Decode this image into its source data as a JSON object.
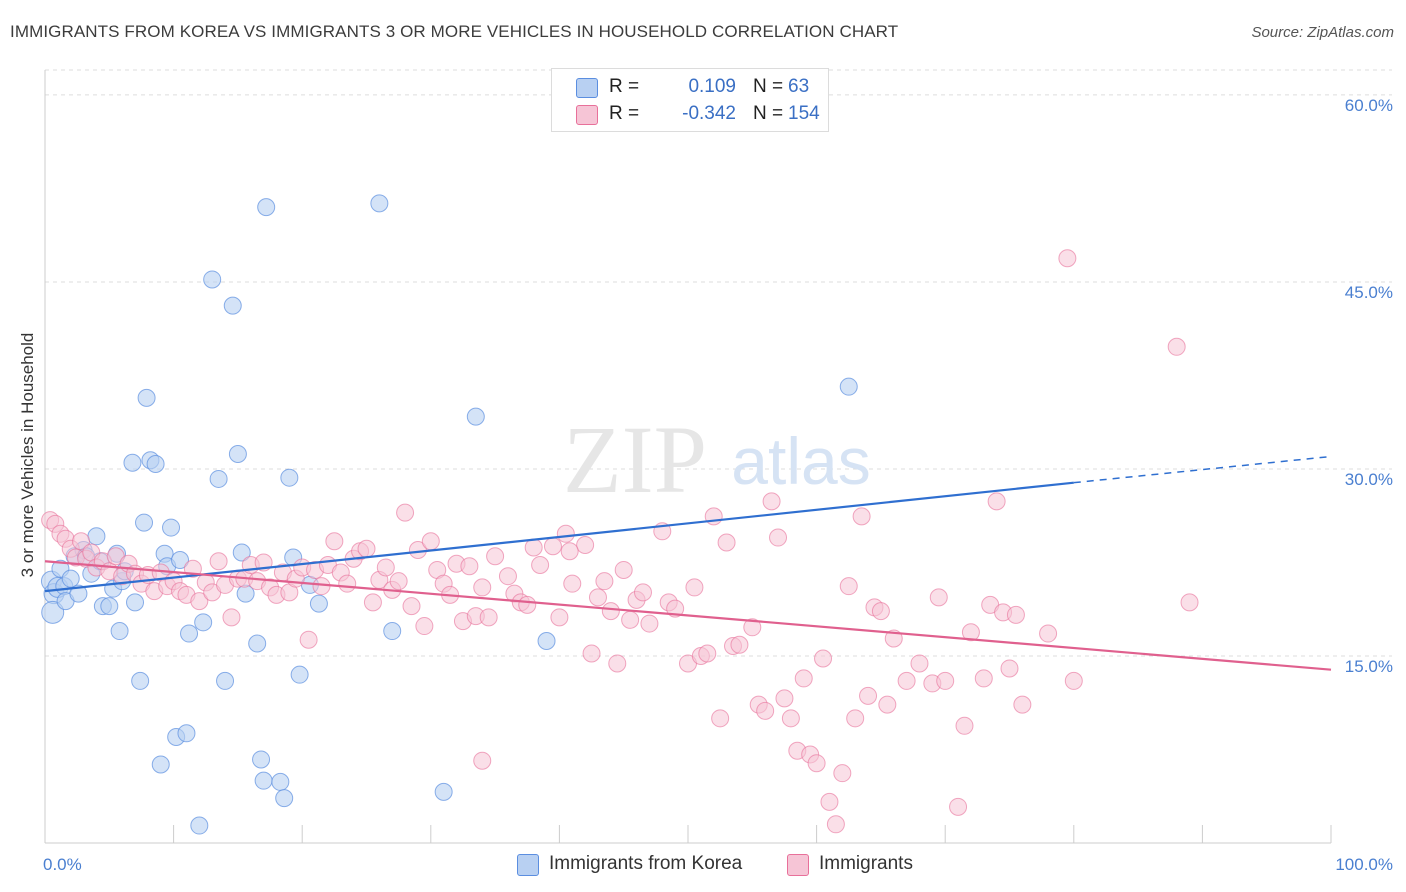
{
  "header": {
    "title": "IMMIGRANTS FROM KOREA VS IMMIGRANTS 3 OR MORE VEHICLES IN HOUSEHOLD CORRELATION CHART",
    "source": "Source: ZipAtlas.com"
  },
  "watermark": {
    "zip": "ZIP",
    "atlas": "atlas"
  },
  "legend_top": {
    "rows": [
      {
        "r_label": "R =",
        "r_value": "0.109",
        "n_label": "N =",
        "n_value": "63"
      },
      {
        "r_label": "R =",
        "r_value": "-0.342",
        "n_label": "N =",
        "n_value": "154"
      }
    ]
  },
  "chart_data": {
    "type": "scatter",
    "title": "IMMIGRANTS FROM KOREA VS IMMIGRANTS 3 OR MORE VEHICLES IN HOUSEHOLD CORRELATION CHART",
    "xlabel": "",
    "ylabel": "3 or more Vehicles in Household",
    "xlim": [
      0,
      100
    ],
    "ylim": [
      0,
      62
    ],
    "x_tick_labels": [
      "0.0%",
      "100.0%"
    ],
    "y_ticks": [
      15,
      30,
      45,
      60
    ],
    "y_tick_labels": [
      "15.0%",
      "30.0%",
      "45.0%",
      "60.0%"
    ],
    "grid": true,
    "legend_position": "bottom",
    "colors": {
      "korea": "#5b8ee0",
      "korea_fill": "#b8d0f2",
      "immigrants": "#e8709a",
      "immigrants_fill": "#f6c5d6"
    },
    "series": [
      {
        "name": "Immigrants from Korea",
        "color": "#5b8ee0",
        "trend": {
          "x0": 0,
          "y0": 20.2,
          "x1": 80,
          "y1": 28.9,
          "dashed_to_x": 100,
          "dashed_to_y": 31.0
        },
        "points": [
          [
            0.5,
            21
          ],
          [
            0.7,
            20
          ],
          [
            0.6,
            18.5
          ],
          [
            1,
            20.5
          ],
          [
            1.2,
            22
          ],
          [
            1.5,
            20.6
          ],
          [
            1.6,
            19.4
          ],
          [
            2,
            21.2
          ],
          [
            2.3,
            23
          ],
          [
            2.6,
            20
          ],
          [
            3,
            23.5
          ],
          [
            3.2,
            23
          ],
          [
            3.6,
            21.6
          ],
          [
            4,
            24.6
          ],
          [
            4.3,
            22.6
          ],
          [
            4.5,
            19
          ],
          [
            5,
            19
          ],
          [
            5.3,
            20.4
          ],
          [
            5.6,
            23.2
          ],
          [
            5.8,
            17
          ],
          [
            6,
            21
          ],
          [
            6.2,
            21.8
          ],
          [
            7,
            19.3
          ],
          [
            7.4,
            13
          ],
          [
            7.7,
            25.7
          ],
          [
            7.9,
            35.7
          ],
          [
            8.2,
            30.7
          ],
          [
            8.6,
            30.4
          ],
          [
            6.8,
            30.5
          ],
          [
            9,
            6.3
          ],
          [
            9.3,
            23.2
          ],
          [
            9.5,
            22.2
          ],
          [
            9.8,
            25.3
          ],
          [
            10.2,
            8.5
          ],
          [
            10.5,
            22.7
          ],
          [
            11,
            8.8
          ],
          [
            11.2,
            16.8
          ],
          [
            12,
            1.4
          ],
          [
            12.3,
            17.7
          ],
          [
            13,
            45.2
          ],
          [
            13.5,
            29.2
          ],
          [
            14,
            13
          ],
          [
            14.6,
            43.1
          ],
          [
            15,
            31.2
          ],
          [
            15.3,
            23.3
          ],
          [
            15.6,
            20
          ],
          [
            16.5,
            16
          ],
          [
            16.8,
            6.7
          ],
          [
            17,
            5
          ],
          [
            17.2,
            51
          ],
          [
            18.3,
            4.9
          ],
          [
            18.6,
            3.6
          ],
          [
            19,
            29.3
          ],
          [
            19.3,
            22.9
          ],
          [
            19.8,
            13.5
          ],
          [
            20.6,
            20.7
          ],
          [
            21.3,
            19.2
          ],
          [
            26,
            51.3
          ],
          [
            27,
            17
          ],
          [
            31,
            4.1
          ],
          [
            33.5,
            34.2
          ],
          [
            39,
            16.2
          ],
          [
            62.5,
            36.6
          ]
        ]
      },
      {
        "name": "Immigrants",
        "color": "#e8709a",
        "trend": {
          "x0": 0,
          "y0": 22.6,
          "x1": 100,
          "y1": 13.9
        },
        "points": [
          [
            0.4,
            25.9
          ],
          [
            0.8,
            25.6
          ],
          [
            1.2,
            24.8
          ],
          [
            1.6,
            24.4
          ],
          [
            2,
            23.6
          ],
          [
            2.4,
            22.9
          ],
          [
            2.8,
            24.2
          ],
          [
            3.2,
            22.8
          ],
          [
            3.6,
            23.3
          ],
          [
            4,
            22.1
          ],
          [
            4.5,
            22.6
          ],
          [
            5,
            21.8
          ],
          [
            5.5,
            23
          ],
          [
            6,
            21.4
          ],
          [
            6.5,
            22.4
          ],
          [
            7,
            21.6
          ],
          [
            7.5,
            20.8
          ],
          [
            8,
            21.5
          ],
          [
            8.5,
            20.2
          ],
          [
            9,
            21.7
          ],
          [
            9.5,
            20.6
          ],
          [
            10,
            21
          ],
          [
            10.5,
            20.2
          ],
          [
            11,
            19.9
          ],
          [
            11.5,
            22
          ],
          [
            12,
            19.4
          ],
          [
            12.5,
            20.9
          ],
          [
            13,
            20.1
          ],
          [
            13.5,
            22.6
          ],
          [
            14,
            20.7
          ],
          [
            14.5,
            18.1
          ],
          [
            15,
            21.2
          ],
          [
            15.5,
            21.2
          ],
          [
            16,
            22.3
          ],
          [
            16.5,
            21
          ],
          [
            17,
            22.5
          ],
          [
            17.5,
            20.5
          ],
          [
            18,
            19.9
          ],
          [
            18.5,
            21.7
          ],
          [
            19,
            20.1
          ],
          [
            19.5,
            21.2
          ],
          [
            20,
            22.1
          ],
          [
            20.5,
            16.3
          ],
          [
            21,
            21.9
          ],
          [
            21.5,
            20.6
          ],
          [
            22,
            22.3
          ],
          [
            22.5,
            24.2
          ],
          [
            23,
            21.7
          ],
          [
            23.5,
            20.8
          ],
          [
            24,
            22.8
          ],
          [
            24.5,
            23.4
          ],
          [
            25,
            23.6
          ],
          [
            25.5,
            19.3
          ],
          [
            26,
            21.1
          ],
          [
            26.5,
            22.1
          ],
          [
            27,
            20.3
          ],
          [
            27.5,
            21
          ],
          [
            28,
            26.5
          ],
          [
            28.5,
            19
          ],
          [
            29,
            23.5
          ],
          [
            29.5,
            17.4
          ],
          [
            30,
            24.2
          ],
          [
            30.5,
            21.9
          ],
          [
            31,
            20.8
          ],
          [
            31.5,
            19.9
          ],
          [
            32,
            22.4
          ],
          [
            32.5,
            17.8
          ],
          [
            33,
            22.2
          ],
          [
            33.5,
            18.2
          ],
          [
            34,
            20.5
          ],
          [
            34.5,
            18.1
          ],
          [
            35,
            23
          ],
          [
            36,
            21.4
          ],
          [
            36.5,
            20
          ],
          [
            37,
            19.3
          ],
          [
            37.5,
            19.1
          ],
          [
            38,
            23.7
          ],
          [
            38.5,
            22.3
          ],
          [
            39.5,
            23.8
          ],
          [
            40,
            18.1
          ],
          [
            40.5,
            24.8
          ],
          [
            41,
            20.8
          ],
          [
            42,
            23.9
          ],
          [
            42.5,
            15.2
          ],
          [
            43,
            19.7
          ],
          [
            43.5,
            21
          ],
          [
            44,
            18.6
          ],
          [
            44.5,
            14.4
          ],
          [
            45,
            21.9
          ],
          [
            45.5,
            17.9
          ],
          [
            46,
            19.5
          ],
          [
            46.5,
            20.1
          ],
          [
            47,
            17.6
          ],
          [
            48,
            25
          ],
          [
            48.5,
            19.3
          ],
          [
            49,
            18.8
          ],
          [
            50,
            14.4
          ],
          [
            50.5,
            20.5
          ],
          [
            51,
            15
          ],
          [
            51.5,
            15.2
          ],
          [
            52,
            26.2
          ],
          [
            52.5,
            10
          ],
          [
            53,
            24.1
          ],
          [
            53.5,
            15.8
          ],
          [
            54,
            15.9
          ],
          [
            55,
            17.3
          ],
          [
            55.5,
            11.1
          ],
          [
            56,
            10.6
          ],
          [
            56.5,
            27.4
          ],
          [
            57,
            24.5
          ],
          [
            57.5,
            11.6
          ],
          [
            58,
            10
          ],
          [
            58.5,
            7.4
          ],
          [
            59,
            13.2
          ],
          [
            59.5,
            7.1
          ],
          [
            60,
            6.4
          ],
          [
            60.5,
            14.8
          ],
          [
            61,
            3.3
          ],
          [
            61.5,
            1.5
          ],
          [
            62,
            5.6
          ],
          [
            62.5,
            20.6
          ],
          [
            63,
            10
          ],
          [
            63.5,
            26.2
          ],
          [
            64,
            11.8
          ],
          [
            64.5,
            18.9
          ],
          [
            65,
            18.6
          ],
          [
            65.5,
            11.1
          ],
          [
            66,
            16.4
          ],
          [
            67,
            13
          ],
          [
            68,
            14.4
          ],
          [
            69,
            12.8
          ],
          [
            69.5,
            19.7
          ],
          [
            70,
            13
          ],
          [
            71,
            2.9
          ],
          [
            71.5,
            9.4
          ],
          [
            72,
            16.9
          ],
          [
            73,
            13.2
          ],
          [
            73.5,
            19.1
          ],
          [
            74,
            27.4
          ],
          [
            74.5,
            18.5
          ],
          [
            75,
            14
          ],
          [
            75.5,
            18.3
          ],
          [
            76,
            11.1
          ],
          [
            78,
            16.8
          ],
          [
            79.5,
            46.9
          ],
          [
            80,
            13
          ],
          [
            88,
            39.8
          ],
          [
            89,
            19.3
          ],
          [
            34,
            6.6
          ],
          [
            40.8,
            23.4
          ]
        ]
      }
    ]
  },
  "legend_bottom": {
    "items": [
      "Immigrants from Korea",
      "Immigrants"
    ]
  }
}
